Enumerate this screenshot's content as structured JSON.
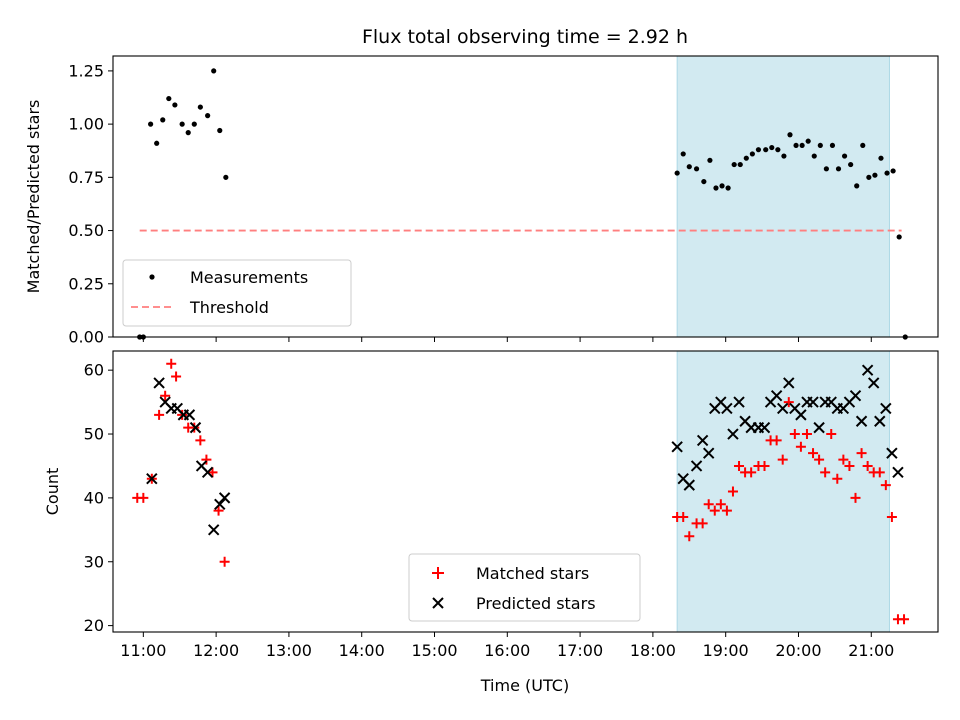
{
  "title": "Flux total observing time = 2.92 h",
  "colors": {
    "measurement": "#000000",
    "threshold": "#ff7f7f",
    "matched": "#ff0000",
    "predicted": "#000000",
    "shade": "#add8e6"
  },
  "chart_data": [
    {
      "type": "scatter",
      "panel": "top",
      "ylabel": "Matched/Predicted stars",
      "xlabel": "",
      "xlim": [
        "10:35",
        "21:55"
      ],
      "ylim": [
        0,
        1.32
      ],
      "yticks": [
        0.0,
        0.25,
        0.5,
        0.75,
        1.0,
        1.25
      ],
      "ytick_labels": [
        "0.00",
        "0.25",
        "0.50",
        "0.75",
        "1.00",
        "1.25"
      ],
      "xticks": [
        "11:00",
        "12:00",
        "13:00",
        "14:00",
        "15:00",
        "16:00",
        "17:00",
        "18:00",
        "19:00",
        "20:00",
        "21:00"
      ],
      "shaded_interval": [
        "18:20",
        "21:15"
      ],
      "legend": {
        "placement": "lower-left",
        "entries": [
          "Measurements",
          "Threshold"
        ]
      },
      "threshold": {
        "name": "Threshold",
        "value": 0.5,
        "x_range": [
          "10:57",
          "21:25"
        ]
      },
      "series": [
        {
          "name": "Measurements",
          "marker": "dot",
          "points": [
            [
              "10:57",
              0.0
            ],
            [
              "11:00",
              0.0
            ],
            [
              "11:06",
              1.0
            ],
            [
              "11:11",
              0.91
            ],
            [
              "11:16",
              1.02
            ],
            [
              "11:21",
              1.12
            ],
            [
              "11:26",
              1.09
            ],
            [
              "11:32",
              1.0
            ],
            [
              "11:37",
              0.96
            ],
            [
              "11:42",
              1.0
            ],
            [
              "11:47",
              1.08
            ],
            [
              "11:53",
              1.04
            ],
            [
              "11:58",
              1.25
            ],
            [
              "12:03",
              0.97
            ],
            [
              "12:08",
              0.75
            ],
            [
              "18:20",
              0.77
            ],
            [
              "18:25",
              0.86
            ],
            [
              "18:30",
              0.8
            ],
            [
              "18:36",
              0.79
            ],
            [
              "18:42",
              0.73
            ],
            [
              "18:47",
              0.83
            ],
            [
              "18:52",
              0.7
            ],
            [
              "18:57",
              0.71
            ],
            [
              "19:02",
              0.7
            ],
            [
              "19:07",
              0.81
            ],
            [
              "19:12",
              0.81
            ],
            [
              "19:17",
              0.84
            ],
            [
              "19:22",
              0.86
            ],
            [
              "19:27",
              0.88
            ],
            [
              "19:33",
              0.88
            ],
            [
              "19:38",
              0.89
            ],
            [
              "19:43",
              0.88
            ],
            [
              "19:48",
              0.85
            ],
            [
              "19:53",
              0.95
            ],
            [
              "19:58",
              0.9
            ],
            [
              "20:03",
              0.9
            ],
            [
              "20:08",
              0.92
            ],
            [
              "20:13",
              0.85
            ],
            [
              "20:18",
              0.9
            ],
            [
              "20:23",
              0.79
            ],
            [
              "20:28",
              0.9
            ],
            [
              "20:33",
              0.79
            ],
            [
              "20:38",
              0.85
            ],
            [
              "20:43",
              0.81
            ],
            [
              "20:48",
              0.71
            ],
            [
              "20:53",
              0.9
            ],
            [
              "20:58",
              0.75
            ],
            [
              "21:03",
              0.76
            ],
            [
              "21:08",
              0.84
            ],
            [
              "21:13",
              0.77
            ],
            [
              "21:18",
              0.78
            ],
            [
              "21:23",
              0.47
            ],
            [
              "21:28",
              0.0
            ]
          ]
        }
      ]
    },
    {
      "type": "scatter",
      "panel": "bottom",
      "ylabel": "Count",
      "xlabel": "Time (UTC)",
      "xlim": [
        "10:35",
        "21:55"
      ],
      "ylim": [
        19,
        63
      ],
      "yticks": [
        20,
        30,
        40,
        50,
        60
      ],
      "ytick_labels": [
        "20",
        "30",
        "40",
        "50",
        "60"
      ],
      "xticks": [
        "11:00",
        "12:00",
        "13:00",
        "14:00",
        "15:00",
        "16:00",
        "17:00",
        "18:00",
        "19:00",
        "20:00",
        "21:00"
      ],
      "xtick_labels": [
        "11:00",
        "12:00",
        "13:00",
        "14:00",
        "15:00",
        "16:00",
        "17:00",
        "18:00",
        "19:00",
        "20:00",
        "21:00"
      ],
      "shaded_interval": [
        "18:20",
        "21:15"
      ],
      "legend": {
        "placement": "lower-center",
        "entries": [
          "Matched stars",
          "Predicted stars"
        ]
      },
      "series": [
        {
          "name": "Matched stars",
          "marker": "plus",
          "points": [
            [
              "10:55",
              40
            ],
            [
              "11:00",
              40
            ],
            [
              "11:07",
              43
            ],
            [
              "11:13",
              53
            ],
            [
              "11:18",
              56
            ],
            [
              "11:23",
              61
            ],
            [
              "11:27",
              59
            ],
            [
              "11:32",
              53
            ],
            [
              "11:37",
              51
            ],
            [
              "11:42",
              51
            ],
            [
              "11:47",
              49
            ],
            [
              "11:52",
              46
            ],
            [
              "11:57",
              44
            ],
            [
              "12:02",
              38
            ],
            [
              "12:07",
              30
            ],
            [
              "18:20",
              37
            ],
            [
              "18:25",
              37
            ],
            [
              "18:30",
              34
            ],
            [
              "18:36",
              36
            ],
            [
              "18:41",
              36
            ],
            [
              "18:46",
              39
            ],
            [
              "18:51",
              38
            ],
            [
              "18:56",
              39
            ],
            [
              "19:01",
              38
            ],
            [
              "19:06",
              41
            ],
            [
              "19:11",
              45
            ],
            [
              "19:16",
              44
            ],
            [
              "19:21",
              44
            ],
            [
              "19:27",
              45
            ],
            [
              "19:32",
              45
            ],
            [
              "19:37",
              49
            ],
            [
              "19:42",
              49
            ],
            [
              "19:47",
              46
            ],
            [
              "19:52",
              55
            ],
            [
              "19:57",
              50
            ],
            [
              "20:02",
              48
            ],
            [
              "20:07",
              50
            ],
            [
              "20:12",
              47
            ],
            [
              "20:17",
              46
            ],
            [
              "20:22",
              44
            ],
            [
              "20:27",
              50
            ],
            [
              "20:32",
              43
            ],
            [
              "20:37",
              46
            ],
            [
              "20:42",
              45
            ],
            [
              "20:47",
              40
            ],
            [
              "20:52",
              47
            ],
            [
              "20:57",
              45
            ],
            [
              "21:02",
              44
            ],
            [
              "21:07",
              44
            ],
            [
              "21:12",
              42
            ],
            [
              "21:17",
              37
            ],
            [
              "21:22",
              21
            ],
            [
              "21:27",
              21
            ]
          ]
        },
        {
          "name": "Predicted stars",
          "marker": "x",
          "points": [
            [
              "11:07",
              43
            ],
            [
              "11:13",
              58
            ],
            [
              "11:18",
              55
            ],
            [
              "11:23",
              54
            ],
            [
              "11:28",
              54
            ],
            [
              "11:33",
              53
            ],
            [
              "11:38",
              53
            ],
            [
              "11:43",
              51
            ],
            [
              "11:48",
              45
            ],
            [
              "11:53",
              44
            ],
            [
              "11:58",
              35
            ],
            [
              "12:03",
              39
            ],
            [
              "12:07",
              40
            ],
            [
              "18:20",
              48
            ],
            [
              "18:25",
              43
            ],
            [
              "18:30",
              42
            ],
            [
              "18:36",
              45
            ],
            [
              "18:41",
              49
            ],
            [
              "18:46",
              47
            ],
            [
              "18:51",
              54
            ],
            [
              "18:56",
              55
            ],
            [
              "19:01",
              54
            ],
            [
              "19:06",
              50
            ],
            [
              "19:11",
              55
            ],
            [
              "19:16",
              52
            ],
            [
              "19:21",
              51
            ],
            [
              "19:27",
              51
            ],
            [
              "19:32",
              51
            ],
            [
              "19:37",
              55
            ],
            [
              "19:42",
              56
            ],
            [
              "19:47",
              54
            ],
            [
              "19:52",
              58
            ],
            [
              "19:57",
              54
            ],
            [
              "20:02",
              53
            ],
            [
              "20:07",
              55
            ],
            [
              "20:12",
              55
            ],
            [
              "20:17",
              51
            ],
            [
              "20:22",
              55
            ],
            [
              "20:27",
              55
            ],
            [
              "20:32",
              54
            ],
            [
              "20:37",
              54
            ],
            [
              "20:42",
              55
            ],
            [
              "20:47",
              56
            ],
            [
              "20:52",
              52
            ],
            [
              "20:57",
              60
            ],
            [
              "21:02",
              58
            ],
            [
              "21:07",
              52
            ],
            [
              "21:12",
              54
            ],
            [
              "21:17",
              47
            ],
            [
              "21:22",
              44
            ]
          ]
        }
      ]
    }
  ]
}
